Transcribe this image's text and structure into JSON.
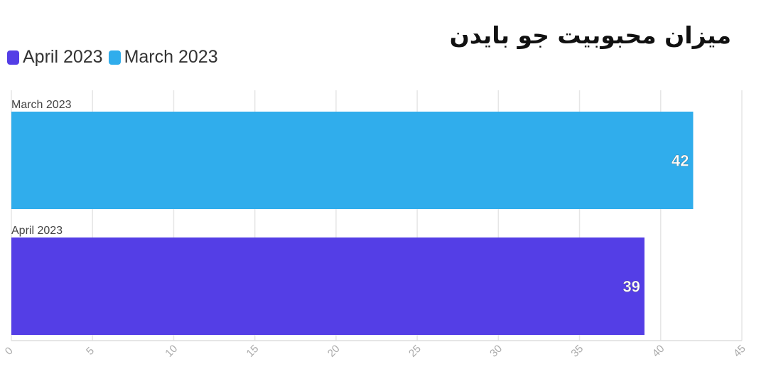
{
  "chart_data": {
    "type": "bar",
    "orientation": "horizontal",
    "title": "میزان محبوبیت جو بایدن",
    "categories": [
      "March 2023",
      "April 2023"
    ],
    "values": [
      42,
      39
    ],
    "bar_colors": [
      "#30adec",
      "#543ee6"
    ],
    "xlim": [
      0,
      45
    ],
    "xticks": [
      0,
      5,
      10,
      15,
      20,
      25,
      30,
      35,
      40,
      45
    ],
    "grid": true,
    "legend": {
      "placement": "top-left",
      "entries": [
        {
          "label": "April 2023",
          "color": "#543ee6"
        },
        {
          "label": "March 2023",
          "color": "#30adec"
        }
      ]
    }
  }
}
